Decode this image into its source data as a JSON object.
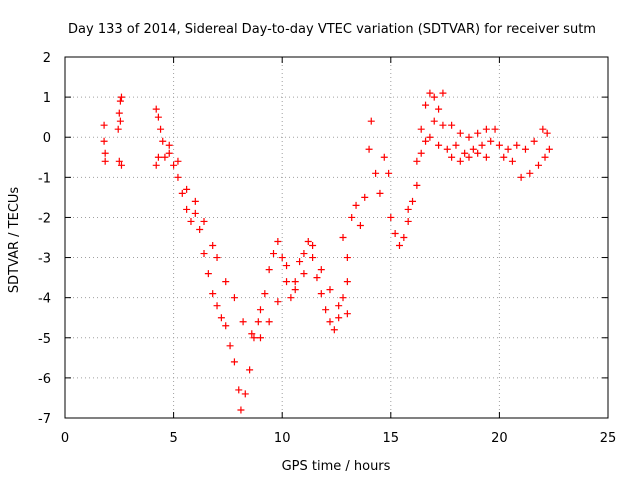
{
  "colors": {
    "series": "#ff0000",
    "grid": "#a0a0a0",
    "axis": "#000000"
  },
  "chart_data": {
    "type": "scatter",
    "title": "Day 133 of 2014, Sidereal Day-to-day VTEC variation (SDTVAR) for receiver sutm",
    "xlabel": "GPS time / hours",
    "ylabel": "SDTVAR / TECUs",
    "xlim": [
      0,
      25
    ],
    "ylim": [
      -7,
      2
    ],
    "xticks": [
      "0",
      "5",
      "10",
      "15",
      "20",
      "25"
    ],
    "yticks": [
      "-7",
      "-6",
      "-5",
      "-4",
      "-3",
      "-2",
      "-1",
      "0",
      "1",
      "2"
    ],
    "xtick_values": [
      0,
      5,
      10,
      15,
      20,
      25
    ],
    "ytick_values": [
      -7,
      -6,
      -5,
      -4,
      -3,
      -2,
      -1,
      0,
      1,
      2
    ],
    "grid": true,
    "marker": "+",
    "series": [
      {
        "color": "#ff0000",
        "points": [
          [
            1.8,
            0.3
          ],
          [
            1.8,
            -0.1
          ],
          [
            1.85,
            -0.4
          ],
          [
            1.85,
            -0.6
          ],
          [
            2.45,
            0.2
          ],
          [
            2.5,
            0.6
          ],
          [
            2.55,
            0.9
          ],
          [
            2.6,
            1.0
          ],
          [
            2.55,
            0.4
          ],
          [
            2.5,
            -0.6
          ],
          [
            2.6,
            -0.7
          ],
          [
            4.2,
            0.7
          ],
          [
            4.3,
            0.5
          ],
          [
            4.4,
            0.2
          ],
          [
            4.5,
            -0.1
          ],
          [
            4.3,
            -0.5
          ],
          [
            4.2,
            -0.7
          ],
          [
            4.6,
            -0.5
          ],
          [
            4.8,
            -0.4
          ],
          [
            5.0,
            -0.7
          ],
          [
            5.2,
            -1.0
          ],
          [
            5.4,
            -1.4
          ],
          [
            5.6,
            -1.8
          ],
          [
            5.8,
            -2.1
          ],
          [
            6.0,
            -1.9
          ],
          [
            6.2,
            -2.3
          ],
          [
            6.4,
            -2.9
          ],
          [
            6.6,
            -3.4
          ],
          [
            6.8,
            -3.9
          ],
          [
            7.0,
            -4.2
          ],
          [
            7.2,
            -4.5
          ],
          [
            7.4,
            -4.7
          ],
          [
            7.6,
            -5.2
          ],
          [
            7.8,
            -5.6
          ],
          [
            8.0,
            -6.3
          ],
          [
            8.1,
            -6.8
          ],
          [
            8.3,
            -6.4
          ],
          [
            8.5,
            -5.8
          ],
          [
            8.7,
            -5.0
          ],
          [
            8.9,
            -4.6
          ],
          [
            4.8,
            -0.2
          ],
          [
            5.2,
            -0.6
          ],
          [
            5.6,
            -1.3
          ],
          [
            6.0,
            -1.6
          ],
          [
            6.4,
            -2.1
          ],
          [
            6.8,
            -2.7
          ],
          [
            7.0,
            -3.0
          ],
          [
            7.4,
            -3.6
          ],
          [
            7.8,
            -4.0
          ],
          [
            8.2,
            -4.6
          ],
          [
            8.6,
            -4.9
          ],
          [
            9.0,
            -4.3
          ],
          [
            9.2,
            -3.9
          ],
          [
            9.4,
            -3.3
          ],
          [
            9.6,
            -2.9
          ],
          [
            9.8,
            -2.6
          ],
          [
            10.0,
            -3.0
          ],
          [
            10.2,
            -3.6
          ],
          [
            10.4,
            -4.0
          ],
          [
            10.6,
            -3.6
          ],
          [
            10.8,
            -3.1
          ],
          [
            11.0,
            -2.9
          ],
          [
            11.2,
            -2.6
          ],
          [
            11.4,
            -3.0
          ],
          [
            11.6,
            -3.5
          ],
          [
            11.8,
            -3.9
          ],
          [
            12.0,
            -4.3
          ],
          [
            12.2,
            -4.6
          ],
          [
            12.4,
            -4.8
          ],
          [
            12.6,
            -4.5
          ],
          [
            12.8,
            -4.0
          ],
          [
            13.0,
            -3.6
          ],
          [
            9.0,
            -5.0
          ],
          [
            9.4,
            -4.6
          ],
          [
            9.8,
            -4.1
          ],
          [
            10.2,
            -3.2
          ],
          [
            10.6,
            -3.8
          ],
          [
            11.0,
            -3.4
          ],
          [
            11.4,
            -2.7
          ],
          [
            11.8,
            -3.3
          ],
          [
            12.2,
            -3.8
          ],
          [
            12.6,
            -4.2
          ],
          [
            13.0,
            -4.4
          ],
          [
            12.8,
            -2.5
          ],
          [
            13.0,
            -3.0
          ],
          [
            13.2,
            -2.0
          ],
          [
            13.4,
            -1.7
          ],
          [
            13.6,
            -2.2
          ],
          [
            13.8,
            -1.5
          ],
          [
            14.0,
            -0.3
          ],
          [
            14.1,
            0.4
          ],
          [
            14.3,
            -0.9
          ],
          [
            14.5,
            -1.4
          ],
          [
            14.7,
            -0.5
          ],
          [
            14.9,
            -0.9
          ],
          [
            15.0,
            -2.0
          ],
          [
            15.2,
            -2.4
          ],
          [
            15.4,
            -2.7
          ],
          [
            15.6,
            -2.5
          ],
          [
            15.8,
            -2.1
          ],
          [
            16.0,
            -1.6
          ],
          [
            16.2,
            -0.6
          ],
          [
            16.4,
            0.2
          ],
          [
            16.6,
            0.8
          ],
          [
            16.8,
            1.1
          ],
          [
            17.0,
            1.0
          ],
          [
            17.2,
            0.7
          ],
          [
            17.4,
            1.1
          ],
          [
            15.8,
            -1.8
          ],
          [
            16.2,
            -1.2
          ],
          [
            16.6,
            -0.1
          ],
          [
            17.0,
            0.4
          ],
          [
            17.4,
            0.3
          ],
          [
            16.4,
            -0.4
          ],
          [
            16.8,
            0.0
          ],
          [
            17.2,
            -0.2
          ],
          [
            17.6,
            -0.3
          ],
          [
            17.8,
            0.3
          ],
          [
            18.2,
            0.1
          ],
          [
            18.6,
            0.0
          ],
          [
            19.0,
            0.1
          ],
          [
            19.4,
            0.2
          ],
          [
            19.8,
            0.2
          ],
          [
            18.0,
            -0.2
          ],
          [
            18.4,
            -0.4
          ],
          [
            18.8,
            -0.3
          ],
          [
            19.2,
            -0.2
          ],
          [
            19.6,
            -0.1
          ],
          [
            17.8,
            -0.5
          ],
          [
            18.2,
            -0.6
          ],
          [
            18.6,
            -0.5
          ],
          [
            19.0,
            -0.4
          ],
          [
            19.4,
            -0.5
          ],
          [
            20.0,
            -0.2
          ],
          [
            20.4,
            -0.3
          ],
          [
            20.8,
            -0.2
          ],
          [
            21.2,
            -0.3
          ],
          [
            21.6,
            -0.1
          ],
          [
            22.0,
            0.2
          ],
          [
            22.2,
            0.1
          ],
          [
            20.2,
            -0.5
          ],
          [
            20.6,
            -0.6
          ],
          [
            21.0,
            -1.0
          ],
          [
            21.4,
            -0.9
          ],
          [
            21.8,
            -0.7
          ],
          [
            22.1,
            -0.5
          ],
          [
            22.3,
            -0.3
          ]
        ]
      }
    ]
  }
}
